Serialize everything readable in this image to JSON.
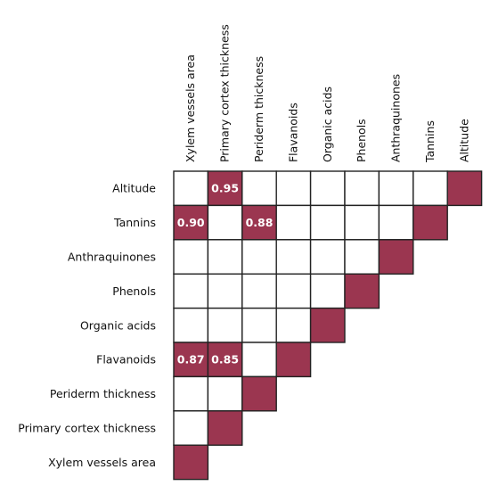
{
  "chart_data": {
    "type": "heatmap",
    "title": "",
    "columns": [
      "Xylem vessels area",
      "Primary cortex thickness",
      "Periderm thickness",
      "Flavanoids",
      "Organic acids",
      "Phenols",
      "Anthraquinones",
      "Tannins",
      "Altitude"
    ],
    "rows": [
      "Altitude",
      "Tannins",
      "Anthraquinones",
      "Phenols",
      "Organic acids",
      "Flavanoids",
      "Periderm thickness",
      "Primary cortex thickness",
      "Xylem vessels area"
    ],
    "cells": [
      {
        "row": "Altitude",
        "col": "Primary cortex thickness",
        "value": "0.95"
      },
      {
        "row": "Tannins",
        "col": "Xylem vessels area",
        "value": "0.90"
      },
      {
        "row": "Tannins",
        "col": "Periderm thickness",
        "value": "0.88"
      },
      {
        "row": "Flavanoids",
        "col": "Xylem vessels area",
        "value": "0.87"
      },
      {
        "row": "Flavanoids",
        "col": "Primary cortex thickness",
        "value": "0.85"
      }
    ],
    "diagonal": "filled",
    "upper_triangle_shown": true,
    "colors": {
      "fill": "#9b3650",
      "grid": "#222222",
      "background": "#ffffff",
      "value_text": "#ffffff"
    }
  }
}
